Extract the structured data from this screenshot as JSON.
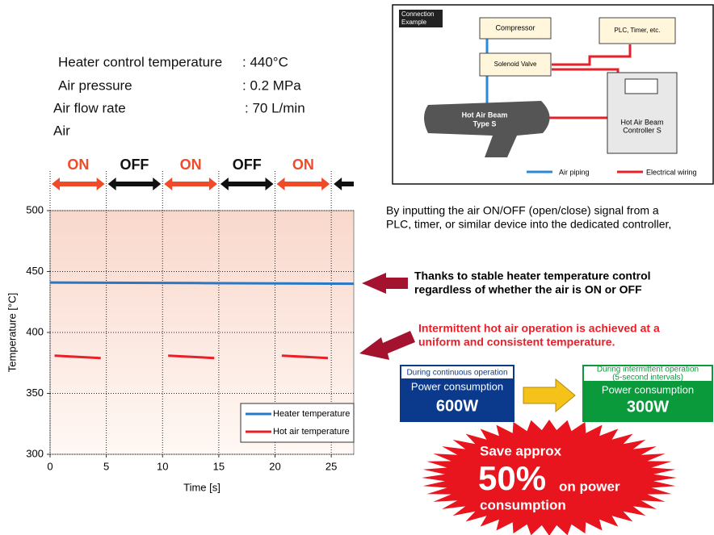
{
  "chart_data": {
    "type": "line",
    "xlabel": "Time [s]",
    "ylabel": "Temperature [°C]",
    "phases": [
      "ON",
      "OFF",
      "ON",
      "OFF",
      "ON"
    ],
    "series": [
      {
        "name": "Heater temperature",
        "color": "#2878c8",
        "x": [
          0,
          13,
          27
        ],
        "values": [
          441,
          440.5,
          440
        ]
      },
      {
        "name": "Hot air temperature",
        "color": "#e8202a",
        "x": [
          0.4,
          4.5,
          null,
          10.5,
          14.6,
          null,
          20.6,
          24.7
        ],
        "values": [
          381,
          379,
          null,
          381,
          379,
          null,
          381,
          379
        ]
      }
    ],
    "xlim": [
      0,
      27
    ],
    "xticks": [
      0,
      5,
      10,
      15,
      20,
      25
    ],
    "ylim": [
      300,
      500
    ],
    "yticks": [
      300,
      350,
      400,
      450,
      500
    ],
    "grid": true,
    "legend": "lower right"
  },
  "conditions": [
    {
      "label": "Heater control temperature",
      "value": ": 440°C"
    },
    {
      "label": "Air pressure",
      "value": ": 0.2 MPa"
    },
    {
      "label": "Air flow rate",
      "value": ": 70 L/min"
    },
    {
      "label": "Air",
      "value": null
    }
  ],
  "diagram": {
    "title": [
      "Connection",
      "Example"
    ],
    "nodes": {
      "compressor": "Compressor",
      "valve": "Solenoid Valve",
      "plc": "PLC, Timer, etc.",
      "beam": [
        "Hot Air Beam",
        "Type S"
      ],
      "controller": [
        "Hot Air Beam",
        "Controller S"
      ]
    },
    "legend": {
      "air": "Air piping",
      "electric": "Electrical wiring"
    }
  },
  "description": [
    "By inputting the air ON/OFF (open/close) signal from a",
    "PLC, timer, or similar device into the dedicated controller,"
  ],
  "notes": {
    "stable": [
      "Thanks to stable heater temperature control",
      "regardless of whether the air is ON or OFF"
    ],
    "uniform": [
      "Intermittent hot air operation is achieved at a",
      "uniform and consistent temperature."
    ]
  },
  "power": {
    "continuous": {
      "caption": [
        "During continuous operation"
      ],
      "label": "Power consumption",
      "value": "600W"
    },
    "intermittent": {
      "caption": [
        "During intermittent operation",
        "(5-second intervals)"
      ],
      "label": "Power consumption",
      "value": "300W"
    }
  },
  "savings": {
    "lead": "Save approx",
    "value": "50%",
    "tail": "on power",
    "end": "consumption"
  }
}
